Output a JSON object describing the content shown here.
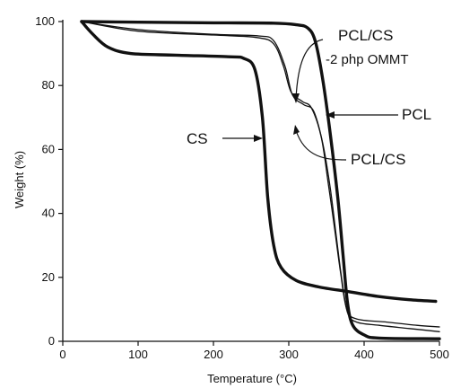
{
  "chart_data": {
    "type": "line",
    "title": "",
    "xlabel": "Temperature (°C)",
    "ylabel": "Weight (%)",
    "xlim": [
      0,
      500
    ],
    "ylim": [
      0,
      100
    ],
    "xticks": [
      0,
      100,
      200,
      300,
      400,
      500
    ],
    "yticks": [
      0,
      20,
      40,
      60,
      80,
      100
    ],
    "grid": false,
    "legend": "none",
    "series": [
      {
        "name": "PCL",
        "style": "thick",
        "points": [
          [
            25,
            100
          ],
          [
            100,
            99.8
          ],
          [
            200,
            99.6
          ],
          [
            280,
            99.5
          ],
          [
            310,
            99
          ],
          [
            325,
            98
          ],
          [
            335,
            94
          ],
          [
            345,
            82
          ],
          [
            355,
            65
          ],
          [
            365,
            45
          ],
          [
            372,
            27
          ],
          [
            378,
            12
          ],
          [
            385,
            5
          ],
          [
            400,
            2
          ],
          [
            420,
            1
          ],
          [
            500,
            0.8
          ]
        ]
      },
      {
        "name": "CS",
        "style": "thick",
        "points": [
          [
            25,
            100
          ],
          [
            40,
            96
          ],
          [
            60,
            92
          ],
          [
            90,
            90
          ],
          [
            150,
            89.5
          ],
          [
            220,
            89
          ],
          [
            240,
            88.5
          ],
          [
            255,
            85
          ],
          [
            265,
            70
          ],
          [
            272,
            45
          ],
          [
            280,
            30
          ],
          [
            290,
            23
          ],
          [
            310,
            19
          ],
          [
            340,
            17
          ],
          [
            380,
            15.5
          ],
          [
            420,
            14
          ],
          [
            460,
            13
          ],
          [
            495,
            12.5
          ]
        ]
      },
      {
        "name": "PCL/CS",
        "style": "thin",
        "points": [
          [
            25,
            100
          ],
          [
            100,
            97.5
          ],
          [
            200,
            96
          ],
          [
            260,
            95.5
          ],
          [
            280,
            94
          ],
          [
            295,
            86
          ],
          [
            305,
            77
          ],
          [
            320,
            74
          ],
          [
            333,
            72
          ],
          [
            345,
            62
          ],
          [
            355,
            48
          ],
          [
            363,
            33
          ],
          [
            370,
            20
          ],
          [
            378,
            9
          ],
          [
            390,
            6
          ],
          [
            420,
            5
          ],
          [
            460,
            4
          ],
          [
            500,
            3
          ]
        ]
      },
      {
        "name": "PCL/CS-2 php OMMT",
        "style": "thin",
        "points": [
          [
            25,
            100
          ],
          [
            100,
            97
          ],
          [
            200,
            95.8
          ],
          [
            258,
            95
          ],
          [
            280,
            93
          ],
          [
            293,
            86
          ],
          [
            303,
            78
          ],
          [
            318,
            75
          ],
          [
            330,
            73
          ],
          [
            343,
            64
          ],
          [
            352,
            50
          ],
          [
            361,
            35
          ],
          [
            369,
            21
          ],
          [
            377,
            10
          ],
          [
            390,
            7
          ],
          [
            430,
            6
          ],
          [
            470,
            5
          ],
          [
            500,
            4.5
          ]
        ]
      }
    ],
    "annotations": [
      {
        "text": "PCL/CS",
        "target": "PCL/CS-2 php OMMT"
      },
      {
        "text": "-2 php OMMT",
        "target": "PCL/CS-2 php OMMT"
      },
      {
        "text": "PCL",
        "target": "PCL"
      },
      {
        "text": "CS",
        "target": "CS"
      },
      {
        "text": "PCL/CS",
        "target": "PCL/CS"
      }
    ]
  }
}
